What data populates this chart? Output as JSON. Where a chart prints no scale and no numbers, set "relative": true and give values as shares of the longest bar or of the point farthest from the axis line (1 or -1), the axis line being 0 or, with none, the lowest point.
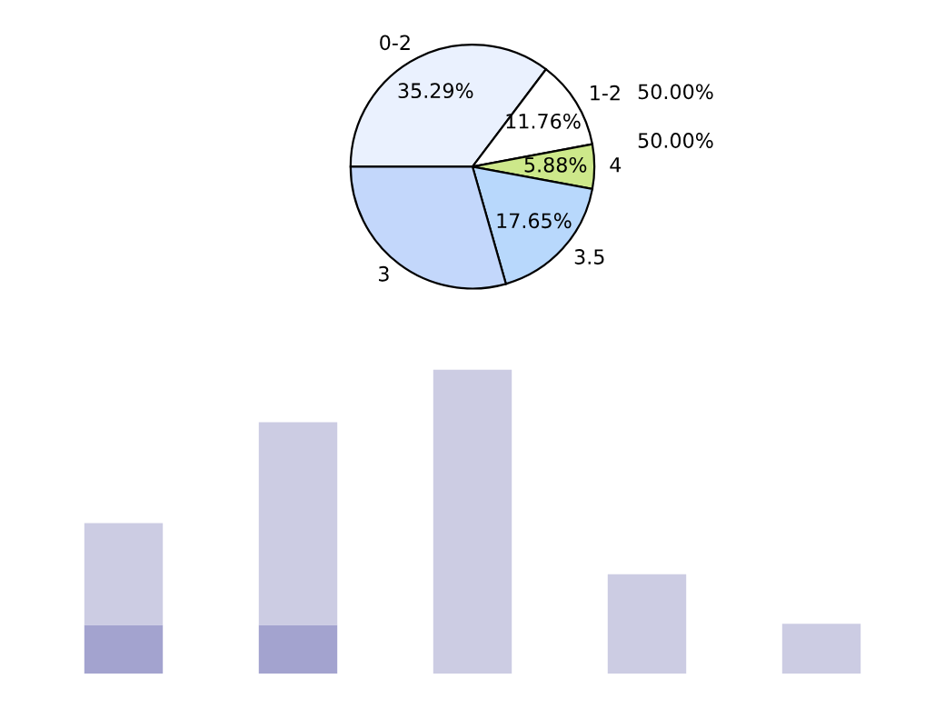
{
  "chart_data": [
    {
      "type": "pie",
      "categories": [
        "0-2",
        "1-2",
        "4",
        "3.5",
        "3"
      ],
      "values": [
        35.29,
        11.76,
        5.88,
        17.65,
        29.42
      ],
      "value_labels": [
        "35.29%",
        "11.76%",
        "5.88%",
        "17.65%",
        null
      ],
      "colors": [
        "#eaf1fe",
        "#ffffff",
        "#cde88a",
        "#b8d8fc",
        "#c3d7fb"
      ],
      "annotations": [
        "50.00%",
        "50.00%"
      ]
    },
    {
      "type": "bar",
      "relative": true,
      "stacked": true,
      "categories": [
        null,
        null,
        null,
        null,
        null
      ],
      "series": [
        {
          "color": "#a3a3cf",
          "values": [
            0.16,
            0.16,
            0,
            0,
            0
          ]
        },
        {
          "color": "#cccce3",
          "values": [
            0.335,
            0.667,
            1,
            0.327,
            0.164
          ]
        }
      ]
    }
  ]
}
